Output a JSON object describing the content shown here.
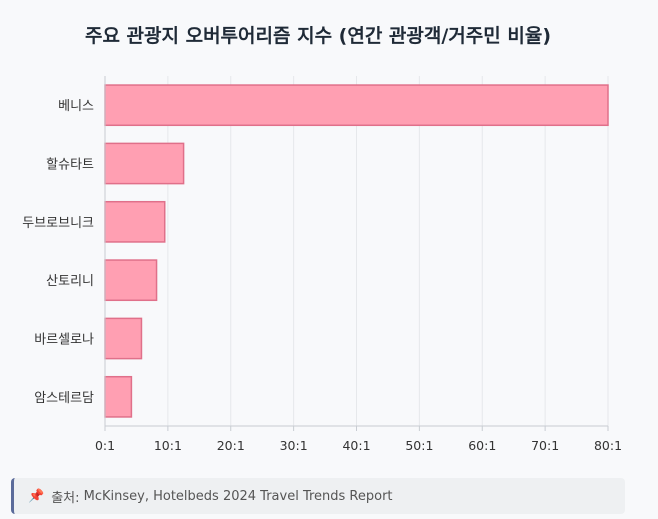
{
  "source": {
    "icon": "pushpin-icon",
    "label": "출처:",
    "text": "McKinsey, Hotelbeds 2024 Travel Trends Report"
  },
  "colors": {
    "bar_fill": "#ff9fb2",
    "bar_stroke": "#e0708a",
    "grid": "#e6e8eb",
    "background": "#f8f9fb"
  },
  "chart_data": {
    "type": "bar",
    "orientation": "horizontal",
    "title": "주요 관광지 오버투어리즘 지수 (연간 관광객/거주민 비율)",
    "categories": [
      "베니스",
      "할슈타트",
      "두브로브니크",
      "산토리니",
      "바르셀로나",
      "암스테르담"
    ],
    "values": [
      80,
      12.5,
      9.5,
      8.2,
      5.8,
      4.2
    ],
    "xlim": [
      0,
      80
    ],
    "xticks": [
      0,
      10,
      20,
      30,
      40,
      50,
      60,
      70,
      80
    ],
    "tick_suffix": ":1",
    "xlabel": "",
    "ylabel": "",
    "grid": true,
    "legend": "none"
  }
}
